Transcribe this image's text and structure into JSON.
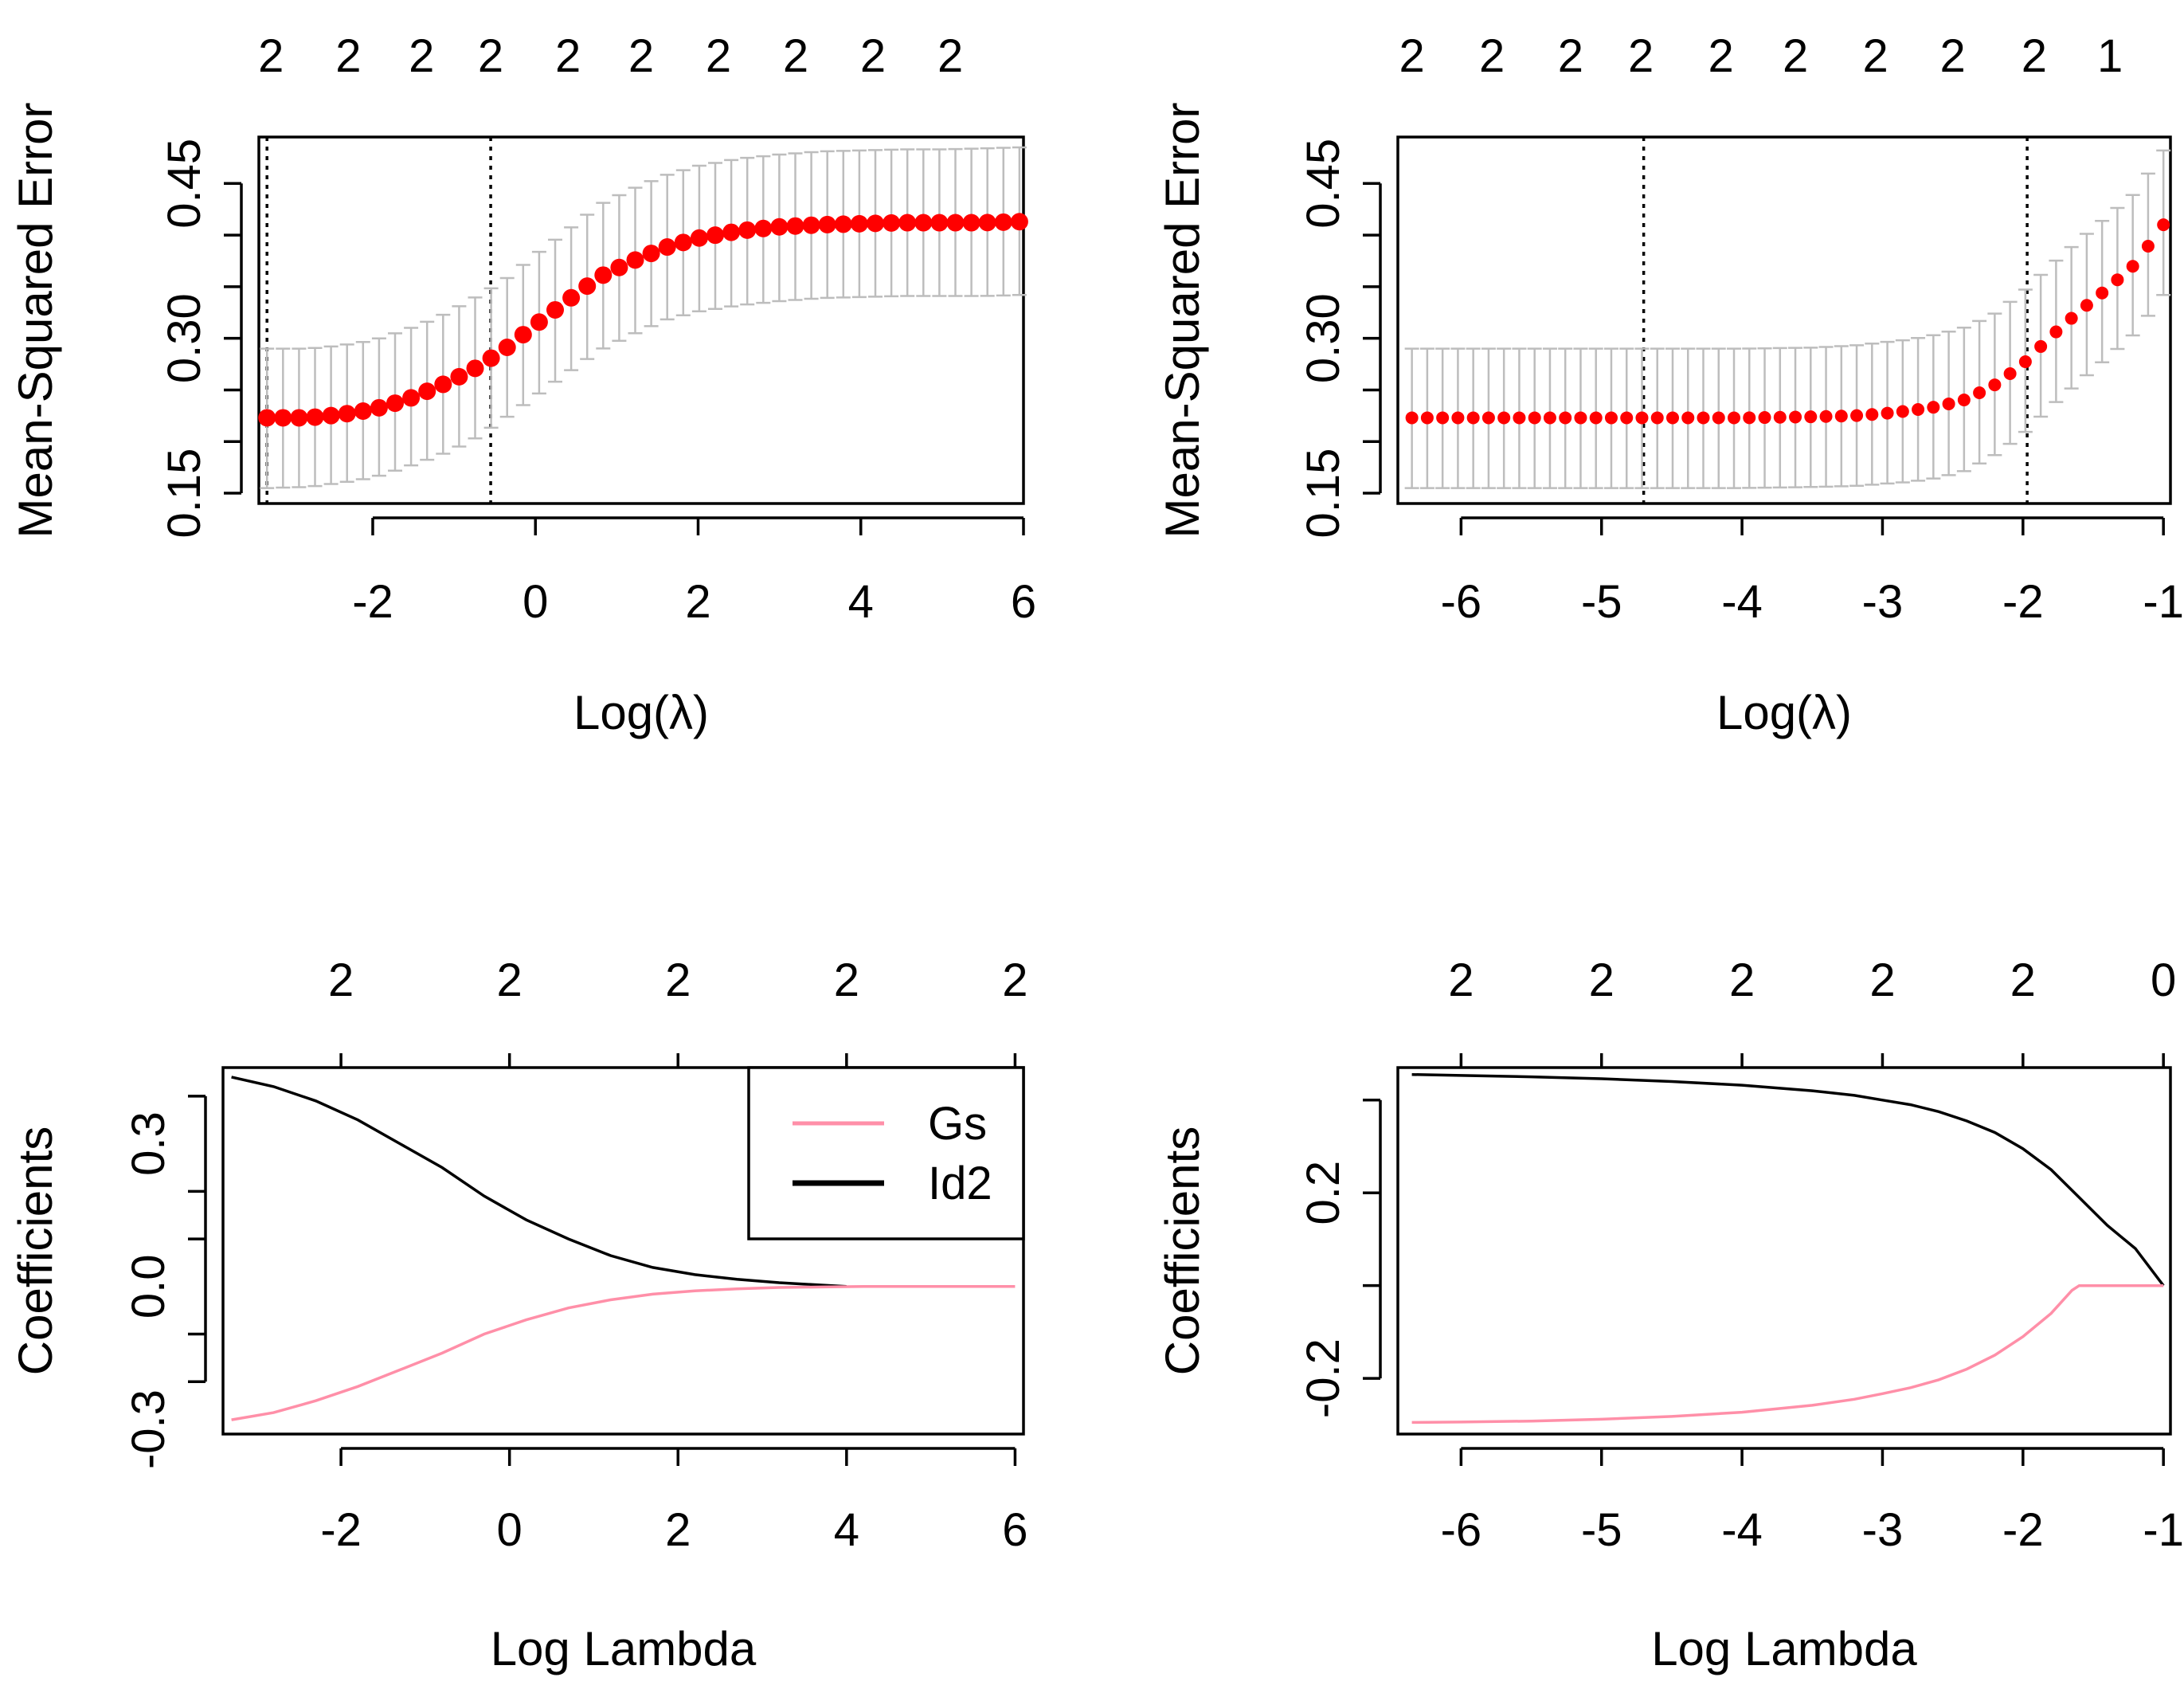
{
  "chart_data": [
    {
      "panel": "top-left",
      "type": "line",
      "xlabel": "Log(λ)",
      "ylabel": "Mean-Squared Error",
      "xlim": [
        -3.4,
        6.0
      ],
      "ylim": [
        0.14,
        0.495
      ],
      "xticks": [
        "-2",
        "0",
        "2",
        "4",
        "6"
      ],
      "xtick_values": [
        -2,
        0,
        2,
        4,
        6
      ],
      "yticks": [
        "0.15",
        "0.30",
        "0.45"
      ],
      "ytick_values": [
        0.15,
        0.3,
        0.45
      ],
      "ytick_marks": [
        0.15,
        0.2,
        0.25,
        0.3,
        0.35,
        0.4,
        0.45
      ],
      "top_labels": [
        "2",
        "2",
        "2",
        "2",
        "2",
        "2",
        "2",
        "2",
        "2",
        "2"
      ],
      "top_label_positions": [
        -3.25,
        -2.3,
        -1.4,
        -0.55,
        0.4,
        1.3,
        2.25,
        3.2,
        4.15,
        5.1
      ],
      "vlines": [
        -3.3,
        -0.55
      ],
      "series": [
        {
          "color": "#ff0000",
          "error_color": "#bdbdbd",
          "x": [
            -3.3,
            -2.8,
            -2.4,
            -2.0,
            -1.6,
            -1.2,
            -0.8,
            -0.4,
            0.0,
            0.4,
            0.8,
            1.2,
            1.6,
            2.0,
            2.5,
            3.0,
            3.5,
            4.0,
            4.5,
            5.0,
            5.5,
            5.95
          ],
          "y": [
            0.223,
            0.223,
            0.226,
            0.231,
            0.24,
            0.253,
            0.268,
            0.288,
            0.313,
            0.337,
            0.36,
            0.375,
            0.388,
            0.397,
            0.404,
            0.408,
            0.41,
            0.411,
            0.412,
            0.412,
            0.412,
            0.413
          ],
          "lower": [
            0.155,
            0.156,
            0.16,
            0.165,
            0.175,
            0.186,
            0.2,
            0.221,
            0.244,
            0.267,
            0.289,
            0.304,
            0.318,
            0.326,
            0.332,
            0.336,
            0.339,
            0.34,
            0.341,
            0.341,
            0.341,
            0.342
          ],
          "upper": [
            0.29,
            0.29,
            0.293,
            0.298,
            0.308,
            0.32,
            0.337,
            0.355,
            0.381,
            0.405,
            0.43,
            0.445,
            0.458,
            0.467,
            0.474,
            0.478,
            0.481,
            0.482,
            0.483,
            0.483,
            0.484,
            0.485
          ]
        }
      ]
    },
    {
      "panel": "top-right",
      "type": "line",
      "xlabel": "Log(λ)",
      "ylabel": "Mean-Squared Error",
      "xlim": [
        -6.45,
        -0.95
      ],
      "ylim": [
        0.14,
        0.495
      ],
      "xticks": [
        "-6",
        "-5",
        "-4",
        "-3",
        "-2",
        "-1"
      ],
      "xtick_values": [
        -6,
        -5,
        -4,
        -3,
        -2,
        -1
      ],
      "yticks": [
        "0.15",
        "0.30",
        "0.45"
      ],
      "ytick_values": [
        0.15,
        0.3,
        0.45
      ],
      "ytick_marks": [
        0.15,
        0.2,
        0.25,
        0.3,
        0.35,
        0.4,
        0.45
      ],
      "top_labels": [
        "2",
        "2",
        "2",
        "2",
        "2",
        "2",
        "2",
        "2",
        "2",
        "1"
      ],
      "top_label_positions": [
        -6.35,
        -5.78,
        -5.22,
        -4.72,
        -4.15,
        -3.62,
        -3.05,
        -2.5,
        -1.92,
        -1.38
      ],
      "vlines": [
        -4.7,
        -1.97
      ],
      "series": [
        {
          "color": "#ff0000",
          "error_color": "#bdbdbd",
          "x": [
            -6.35,
            -6.0,
            -5.5,
            -5.0,
            -4.7,
            -4.5,
            -4.0,
            -3.5,
            -3.2,
            -3.0,
            -2.8,
            -2.6,
            -2.4,
            -2.2,
            -2.0,
            -1.8,
            -1.6,
            -1.4,
            -1.2,
            -1.0
          ],
          "y": [
            0.223,
            0.223,
            0.223,
            0.223,
            0.223,
            0.223,
            0.223,
            0.224,
            0.225,
            0.227,
            0.23,
            0.234,
            0.241,
            0.255,
            0.275,
            0.302,
            0.326,
            0.348,
            0.372,
            0.41
          ],
          "lower": [
            0.155,
            0.155,
            0.155,
            0.155,
            0.155,
            0.155,
            0.155,
            0.156,
            0.157,
            0.159,
            0.161,
            0.165,
            0.172,
            0.187,
            0.207,
            0.234,
            0.258,
            0.281,
            0.305,
            0.342
          ],
          "upper": [
            0.29,
            0.29,
            0.29,
            0.29,
            0.29,
            0.29,
            0.29,
            0.291,
            0.293,
            0.296,
            0.299,
            0.304,
            0.311,
            0.324,
            0.345,
            0.371,
            0.395,
            0.418,
            0.441,
            0.482
          ]
        }
      ]
    },
    {
      "panel": "bottom-left",
      "type": "line",
      "xlabel": "Log Lambda",
      "ylabel": "Coefficients",
      "xlim": [
        -3.4,
        6.1
      ],
      "ylim": [
        -0.31,
        0.46
      ],
      "xticks": [
        "-2",
        "0",
        "2",
        "4",
        "6"
      ],
      "xtick_values": [
        -2,
        0,
        2,
        4,
        6
      ],
      "yticks": [
        "-0.3",
        "0.0",
        "0.3"
      ],
      "ytick_values": [
        -0.3,
        0.0,
        0.3
      ],
      "ytick_marks": [
        -0.2,
        -0.1,
        0.1,
        0.2,
        0.4
      ],
      "top_labels": [
        "2",
        "2",
        "2",
        "2",
        "2"
      ],
      "top_label_positions": [
        -2,
        0,
        2,
        4,
        6
      ],
      "legend": {
        "position": "top-right",
        "entries": [
          {
            "label": "Gs",
            "color": "#ff8fa8"
          },
          {
            "label": "Id2",
            "color": "#000000"
          }
        ]
      },
      "series": [
        {
          "name": "Id2",
          "color": "#000000",
          "x": [
            -3.3,
            -2.8,
            -2.3,
            -1.8,
            -1.3,
            -0.8,
            -0.3,
            0.2,
            0.7,
            1.2,
            1.7,
            2.2,
            2.7,
            3.2,
            3.7,
            4.0
          ],
          "y": [
            0.44,
            0.42,
            0.39,
            0.35,
            0.3,
            0.25,
            0.19,
            0.14,
            0.1,
            0.065,
            0.04,
            0.025,
            0.015,
            0.008,
            0.003,
            0.0
          ]
        },
        {
          "name": "Gs",
          "color": "#ff8fa8",
          "x": [
            -3.3,
            -2.8,
            -2.3,
            -1.8,
            -1.3,
            -0.8,
            -0.3,
            0.2,
            0.7,
            1.2,
            1.7,
            2.2,
            2.7,
            3.2,
            3.7,
            4.2,
            5.0,
            6.0
          ],
          "y": [
            -0.28,
            -0.265,
            -0.24,
            -0.21,
            -0.175,
            -0.14,
            -0.1,
            -0.07,
            -0.045,
            -0.028,
            -0.016,
            -0.009,
            -0.005,
            -0.002,
            -0.001,
            0.0,
            0.0,
            0.0
          ]
        }
      ]
    },
    {
      "panel": "bottom-right",
      "type": "line",
      "xlabel": "Log Lambda",
      "ylabel": "Coefficients",
      "xlim": [
        -6.45,
        -0.95
      ],
      "ylim": [
        -0.32,
        0.47
      ],
      "xticks": [
        "-6",
        "-5",
        "-4",
        "-3",
        "-2",
        "-1"
      ],
      "xtick_values": [
        -6,
        -5,
        -4,
        -3,
        -2,
        -1
      ],
      "yticks": [
        "-0.2",
        "0.2"
      ],
      "ytick_values": [
        -0.2,
        0.2
      ],
      "ytick_marks": [
        -0.2,
        0.0,
        0.2,
        0.4
      ],
      "top_labels": [
        "2",
        "2",
        "2",
        "2",
        "2",
        "0"
      ],
      "top_label_positions": [
        -6,
        -5,
        -4,
        -3,
        -2,
        -1
      ],
      "series": [
        {
          "name": "Id2",
          "color": "#000000",
          "x": [
            -6.35,
            -6.0,
            -5.5,
            -5.0,
            -4.5,
            -4.0,
            -3.5,
            -3.2,
            -3.0,
            -2.8,
            -2.6,
            -2.4,
            -2.2,
            -2.0,
            -1.8,
            -1.6,
            -1.4,
            -1.2,
            -1.0
          ],
          "y": [
            0.455,
            0.453,
            0.45,
            0.446,
            0.44,
            0.432,
            0.42,
            0.41,
            0.4,
            0.39,
            0.375,
            0.355,
            0.33,
            0.295,
            0.25,
            0.19,
            0.13,
            0.08,
            0.0
          ]
        },
        {
          "name": "Gs",
          "color": "#ff8fa8",
          "x": [
            -6.35,
            -6.0,
            -5.5,
            -5.0,
            -4.5,
            -4.0,
            -3.5,
            -3.2,
            -3.0,
            -2.8,
            -2.6,
            -2.4,
            -2.2,
            -2.0,
            -1.8,
            -1.65,
            -1.6,
            -1.4,
            -1.2,
            -1.0
          ],
          "y": [
            -0.295,
            -0.294,
            -0.292,
            -0.288,
            -0.282,
            -0.273,
            -0.258,
            -0.245,
            -0.233,
            -0.22,
            -0.203,
            -0.18,
            -0.15,
            -0.11,
            -0.06,
            -0.01,
            0.0,
            0.0,
            0.0,
            0.0
          ]
        }
      ]
    }
  ]
}
